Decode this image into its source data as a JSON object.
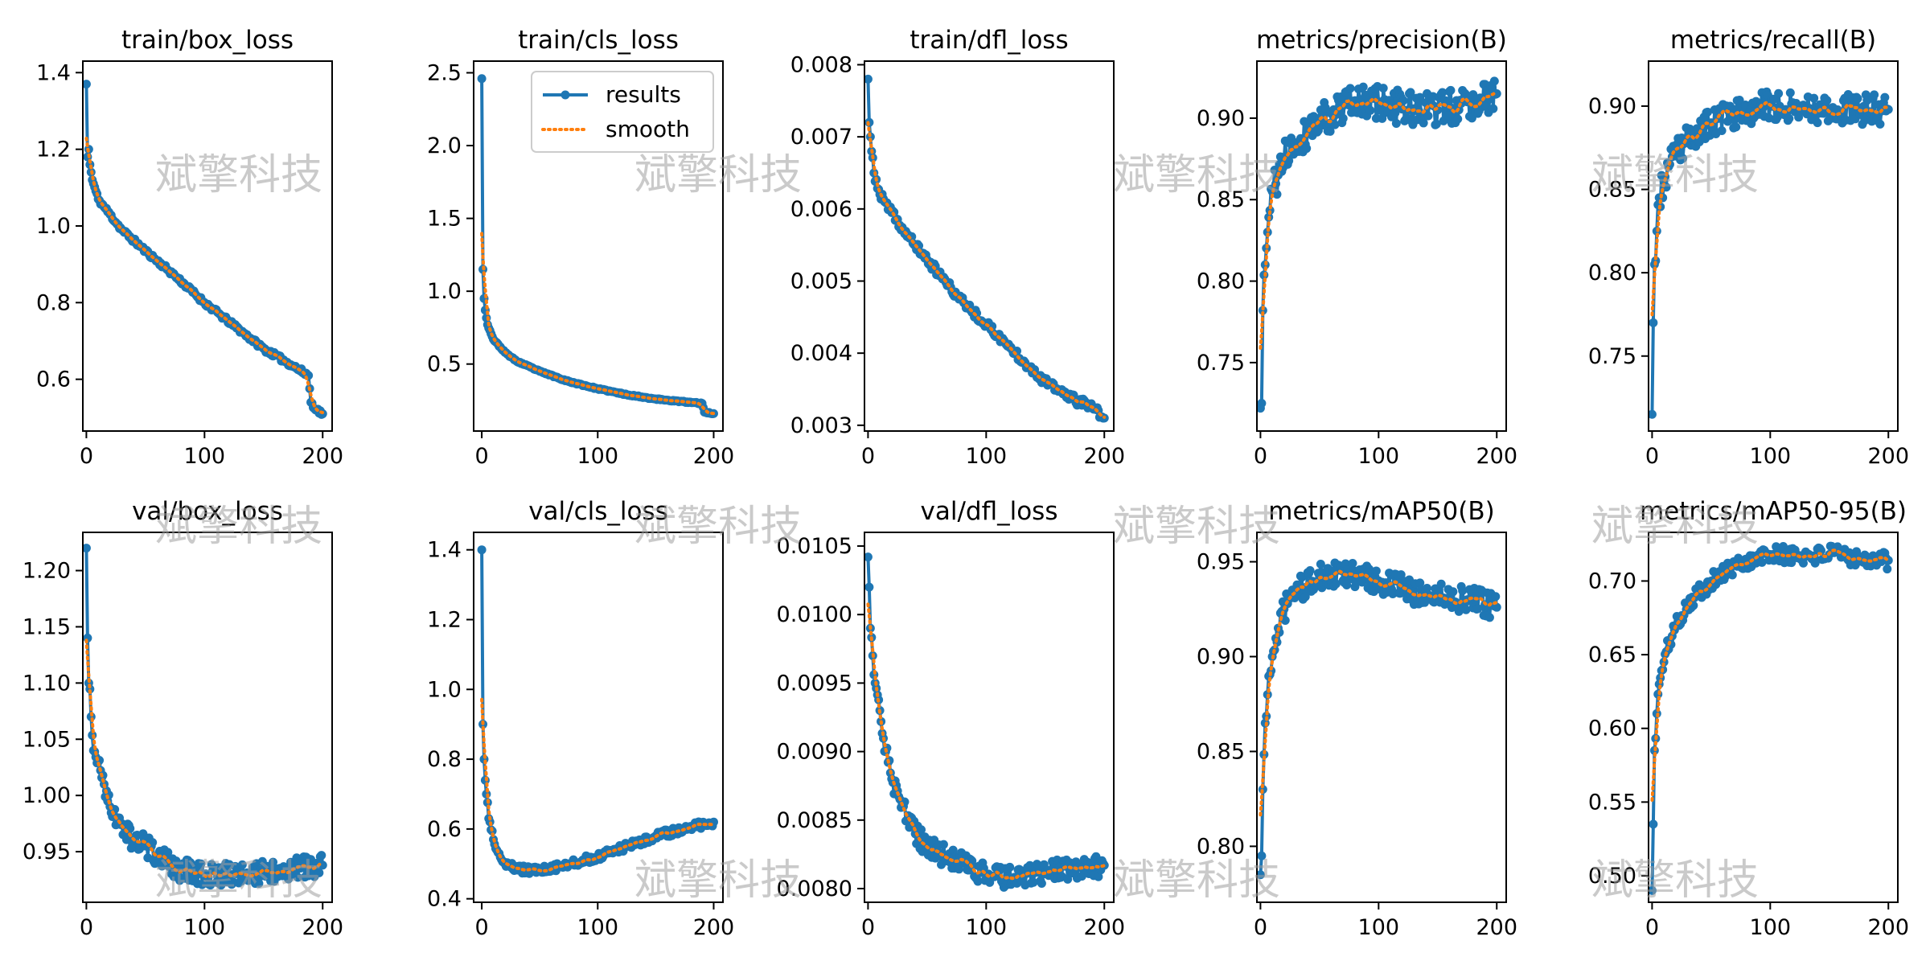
{
  "colors": {
    "results": "#1f77b4",
    "smooth": "#ff7f0e",
    "watermark": "#9e9e9e",
    "axes": "#000000"
  },
  "legend": {
    "items": [
      "results",
      "smooth"
    ],
    "placement": "upper-right of train/cls_loss"
  },
  "watermark": {
    "text": "斌擎科技"
  },
  "chart_data": [
    {
      "type": "line",
      "title": "train/box_loss",
      "xlim": [
        -3,
        208
      ],
      "ylim": [
        0.465,
        1.43
      ],
      "xticks": [
        0,
        100,
        200
      ],
      "xtick_labels": [
        "0",
        "100",
        "200"
      ],
      "yticks": [
        0.6,
        0.8,
        1.0,
        1.2,
        1.4
      ],
      "ytick_labels": [
        "0.6",
        "0.8",
        "1.0",
        "1.2",
        "1.4"
      ],
      "anchors": [
        [
          0,
          1.37
        ],
        [
          1,
          1.18
        ],
        [
          2,
          1.2
        ],
        [
          3,
          1.16
        ],
        [
          5,
          1.12
        ],
        [
          10,
          1.07
        ],
        [
          20,
          1.03
        ],
        [
          30,
          0.99
        ],
        [
          50,
          0.935
        ],
        [
          75,
          0.87
        ],
        [
          100,
          0.8
        ],
        [
          125,
          0.74
        ],
        [
          150,
          0.68
        ],
        [
          175,
          0.635
        ],
        [
          188,
          0.61
        ],
        [
          190,
          0.54
        ],
        [
          195,
          0.52
        ],
        [
          200,
          0.51
        ]
      ],
      "noise": 0.006,
      "seed": 11,
      "legend": false
    },
    {
      "type": "line",
      "title": "train/cls_loss",
      "xlim": [
        -7,
        208
      ],
      "ylim": [
        0.04,
        2.58
      ],
      "xticks": [
        0,
        100,
        200
      ],
      "xtick_labels": [
        "0",
        "100",
        "200"
      ],
      "yticks": [
        0.5,
        1.0,
        1.5,
        2.0,
        2.5
      ],
      "ytick_labels": [
        "0.5",
        "1.0",
        "1.5",
        "2.0",
        "2.5"
      ],
      "anchors": [
        [
          0,
          2.46
        ],
        [
          1,
          1.15
        ],
        [
          2,
          0.95
        ],
        [
          3,
          0.87
        ],
        [
          5,
          0.77
        ],
        [
          10,
          0.67
        ],
        [
          20,
          0.58
        ],
        [
          30,
          0.52
        ],
        [
          50,
          0.45
        ],
        [
          75,
          0.38
        ],
        [
          100,
          0.33
        ],
        [
          125,
          0.29
        ],
        [
          150,
          0.26
        ],
        [
          175,
          0.24
        ],
        [
          190,
          0.23
        ],
        [
          192,
          0.17
        ],
        [
          200,
          0.16
        ]
      ],
      "noise": 0.004,
      "seed": 23,
      "legend": true
    },
    {
      "type": "line",
      "title": "train/dfl_loss",
      "xlim": [
        -3,
        208
      ],
      "ylim": [
        0.00292,
        0.00805
      ],
      "xticks": [
        0,
        100,
        200
      ],
      "xtick_labels": [
        "0",
        "100",
        "200"
      ],
      "yticks": [
        0.003,
        0.004,
        0.005,
        0.006,
        0.007,
        0.008
      ],
      "ytick_labels": [
        "0.003",
        "0.004",
        "0.005",
        "0.006",
        "0.007",
        "0.008"
      ],
      "anchors": [
        [
          0,
          0.0078
        ],
        [
          1,
          0.0072
        ],
        [
          3,
          0.0068
        ],
        [
          5,
          0.0065
        ],
        [
          10,
          0.0062
        ],
        [
          20,
          0.00595
        ],
        [
          30,
          0.0057
        ],
        [
          50,
          0.0053
        ],
        [
          75,
          0.0048
        ],
        [
          100,
          0.0044
        ],
        [
          125,
          0.004
        ],
        [
          150,
          0.0036
        ],
        [
          175,
          0.00335
        ],
        [
          190,
          0.00325
        ],
        [
          200,
          0.0031
        ]
      ],
      "noise": 6e-05,
      "seed": 37,
      "legend": false
    },
    {
      "type": "line",
      "title": "metrics/precision(B)",
      "xlim": [
        -3,
        208
      ],
      "ylim": [
        0.708,
        0.935
      ],
      "xticks": [
        0,
        100,
        200
      ],
      "xtick_labels": [
        "0",
        "100",
        "200"
      ],
      "yticks": [
        0.75,
        0.8,
        0.85,
        0.9
      ],
      "ytick_labels": [
        "0.75",
        "0.80",
        "0.85",
        "0.90"
      ],
      "anchors": [
        [
          0,
          0.722
        ],
        [
          1,
          0.725
        ],
        [
          2,
          0.782
        ],
        [
          4,
          0.81
        ],
        [
          6,
          0.83
        ],
        [
          10,
          0.855
        ],
        [
          15,
          0.865
        ],
        [
          20,
          0.875
        ],
        [
          30,
          0.885
        ],
        [
          50,
          0.9
        ],
        [
          75,
          0.908
        ],
        [
          100,
          0.91
        ],
        [
          125,
          0.905
        ],
        [
          150,
          0.905
        ],
        [
          175,
          0.91
        ],
        [
          200,
          0.915
        ]
      ],
      "noise": 0.011,
      "seed": 41,
      "legend": false
    },
    {
      "type": "line",
      "title": "metrics/recall(B)",
      "xlim": [
        -3,
        208
      ],
      "ylim": [
        0.705,
        0.927
      ],
      "xticks": [
        0,
        100,
        200
      ],
      "xtick_labels": [
        "0",
        "100",
        "200"
      ],
      "yticks": [
        0.75,
        0.8,
        0.85,
        0.9
      ],
      "ytick_labels": [
        "0.75",
        "0.80",
        "0.85",
        "0.90"
      ],
      "anchors": [
        [
          0,
          0.715
        ],
        [
          1,
          0.77
        ],
        [
          2,
          0.805
        ],
        [
          4,
          0.825
        ],
        [
          6,
          0.845
        ],
        [
          10,
          0.855
        ],
        [
          15,
          0.865
        ],
        [
          20,
          0.87
        ],
        [
          30,
          0.88
        ],
        [
          50,
          0.89
        ],
        [
          75,
          0.897
        ],
        [
          100,
          0.9
        ],
        [
          125,
          0.9
        ],
        [
          150,
          0.898
        ],
        [
          175,
          0.898
        ],
        [
          200,
          0.898
        ]
      ],
      "noise": 0.009,
      "seed": 53,
      "legend": false
    },
    {
      "type": "line",
      "title": "val/box_loss",
      "xlim": [
        -3,
        208
      ],
      "ylim": [
        0.905,
        1.234
      ],
      "xticks": [
        0,
        100,
        200
      ],
      "xtick_labels": [
        "0",
        "100",
        "200"
      ],
      "yticks": [
        0.95,
        1.0,
        1.05,
        1.1,
        1.15,
        1.2
      ],
      "ytick_labels": [
        "0.95",
        "1.00",
        "1.05",
        "1.10",
        "1.15",
        "1.20"
      ],
      "anchors": [
        [
          0,
          1.22
        ],
        [
          1,
          1.14
        ],
        [
          2,
          1.1
        ],
        [
          4,
          1.07
        ],
        [
          6,
          1.04
        ],
        [
          10,
          1.03
        ],
        [
          15,
          1.01
        ],
        [
          20,
          0.99
        ],
        [
          30,
          0.975
        ],
        [
          40,
          0.96
        ],
        [
          50,
          0.955
        ],
        [
          75,
          0.935
        ],
        [
          100,
          0.93
        ],
        [
          125,
          0.93
        ],
        [
          150,
          0.932
        ],
        [
          175,
          0.935
        ],
        [
          200,
          0.938
        ]
      ],
      "noise": 0.01,
      "seed": 67,
      "legend": false
    },
    {
      "type": "line",
      "title": "val/cls_loss",
      "xlim": [
        -7,
        208
      ],
      "ylim": [
        0.39,
        1.45
      ],
      "xticks": [
        0,
        100,
        200
      ],
      "xtick_labels": [
        "0",
        "100",
        "200"
      ],
      "yticks": [
        0.4,
        0.6,
        0.8,
        1.0,
        1.2,
        1.4
      ],
      "ytick_labels": [
        "0.4",
        "0.6",
        "0.8",
        "1.0",
        "1.2",
        "1.4"
      ],
      "anchors": [
        [
          0,
          1.4
        ],
        [
          1,
          0.9
        ],
        [
          2,
          0.8
        ],
        [
          4,
          0.7
        ],
        [
          6,
          0.63
        ],
        [
          10,
          0.57
        ],
        [
          15,
          0.53
        ],
        [
          20,
          0.5
        ],
        [
          30,
          0.485
        ],
        [
          50,
          0.48
        ],
        [
          75,
          0.5
        ],
        [
          100,
          0.52
        ],
        [
          125,
          0.55
        ],
        [
          150,
          0.58
        ],
        [
          175,
          0.6
        ],
        [
          200,
          0.62
        ]
      ],
      "noise": 0.011,
      "seed": 79,
      "legend": false
    },
    {
      "type": "line",
      "title": "val/dfl_loss",
      "xlim": [
        -3,
        208
      ],
      "ylim": [
        0.0079,
        0.0106
      ],
      "xticks": [
        0,
        100,
        200
      ],
      "xtick_labels": [
        "0",
        "100",
        "200"
      ],
      "yticks": [
        0.008,
        0.0085,
        0.009,
        0.0095,
        0.01,
        0.0105
      ],
      "ytick_labels": [
        "0.0080",
        "0.0085",
        "0.0090",
        "0.0095",
        "0.0100",
        "0.0105"
      ],
      "anchors": [
        [
          0,
          0.01042
        ],
        [
          1,
          0.0102
        ],
        [
          2,
          0.0099
        ],
        [
          4,
          0.0097
        ],
        [
          6,
          0.0095
        ],
        [
          10,
          0.0093
        ],
        [
          15,
          0.009
        ],
        [
          20,
          0.0088
        ],
        [
          30,
          0.0086
        ],
        [
          40,
          0.0084
        ],
        [
          50,
          0.0083
        ],
        [
          75,
          0.0082
        ],
        [
          100,
          0.0081
        ],
        [
          125,
          0.00808
        ],
        [
          150,
          0.00812
        ],
        [
          175,
          0.00815
        ],
        [
          200,
          0.00817
        ]
      ],
      "noise": 8e-05,
      "seed": 83,
      "legend": false
    },
    {
      "type": "line",
      "title": "metrics/mAP50(B)",
      "xlim": [
        -3,
        208
      ],
      "ylim": [
        0.7705,
        0.9655
      ],
      "xticks": [
        0,
        100,
        200
      ],
      "xtick_labels": [
        "0",
        "100",
        "200"
      ],
      "yticks": [
        0.8,
        0.85,
        0.9,
        0.95
      ],
      "ytick_labels": [
        "0.80",
        "0.85",
        "0.90",
        "0.95"
      ],
      "anchors": [
        [
          0,
          0.785
        ],
        [
          1,
          0.795
        ],
        [
          2,
          0.83
        ],
        [
          4,
          0.865
        ],
        [
          6,
          0.88
        ],
        [
          10,
          0.9
        ],
        [
          15,
          0.915
        ],
        [
          20,
          0.925
        ],
        [
          30,
          0.935
        ],
        [
          50,
          0.942
        ],
        [
          75,
          0.943
        ],
        [
          100,
          0.94
        ],
        [
          125,
          0.935
        ],
        [
          150,
          0.932
        ],
        [
          175,
          0.93
        ],
        [
          200,
          0.926
        ]
      ],
      "noise": 0.007,
      "seed": 97,
      "legend": false
    },
    {
      "type": "line",
      "title": "metrics/mAP50-95(B)",
      "xlim": [
        -3,
        208
      ],
      "ylim": [
        0.482,
        0.733
      ],
      "xticks": [
        0,
        100,
        200
      ],
      "xtick_labels": [
        "0",
        "100",
        "200"
      ],
      "yticks": [
        0.5,
        0.55,
        0.6,
        0.65,
        0.7
      ],
      "ytick_labels": [
        "0.50",
        "0.55",
        "0.60",
        "0.65",
        "0.70"
      ],
      "anchors": [
        [
          0,
          0.49
        ],
        [
          1,
          0.535
        ],
        [
          2,
          0.585
        ],
        [
          4,
          0.61
        ],
        [
          6,
          0.63
        ],
        [
          10,
          0.645
        ],
        [
          15,
          0.66
        ],
        [
          20,
          0.67
        ],
        [
          30,
          0.685
        ],
        [
          50,
          0.7
        ],
        [
          75,
          0.712
        ],
        [
          100,
          0.718
        ],
        [
          125,
          0.717
        ],
        [
          150,
          0.718
        ],
        [
          175,
          0.716
        ],
        [
          200,
          0.714
        ]
      ],
      "noise": 0.006,
      "seed": 101,
      "legend": false
    }
  ]
}
